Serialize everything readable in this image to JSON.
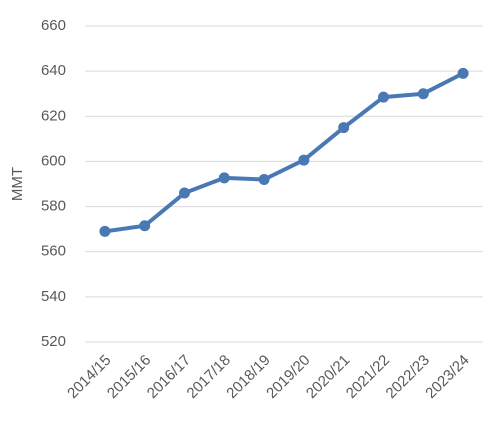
{
  "chart_data": {
    "type": "line",
    "y_label": "MMT",
    "categories": [
      "2014/15",
      "2015/16",
      "2016/17",
      "2017/18",
      "2018/19",
      "2019/20",
      "2020/21",
      "2021/22",
      "2022/23",
      "2023/24"
    ],
    "values": [
      569,
      571.5,
      586,
      592.7,
      592,
      600.6,
      615,
      628.5,
      630,
      639
    ],
    "color": "#4a78b5",
    "ylim": [
      520,
      660
    ],
    "yticks": [
      520,
      540,
      560,
      580,
      600,
      620,
      640,
      660
    ],
    "grid": true
  }
}
